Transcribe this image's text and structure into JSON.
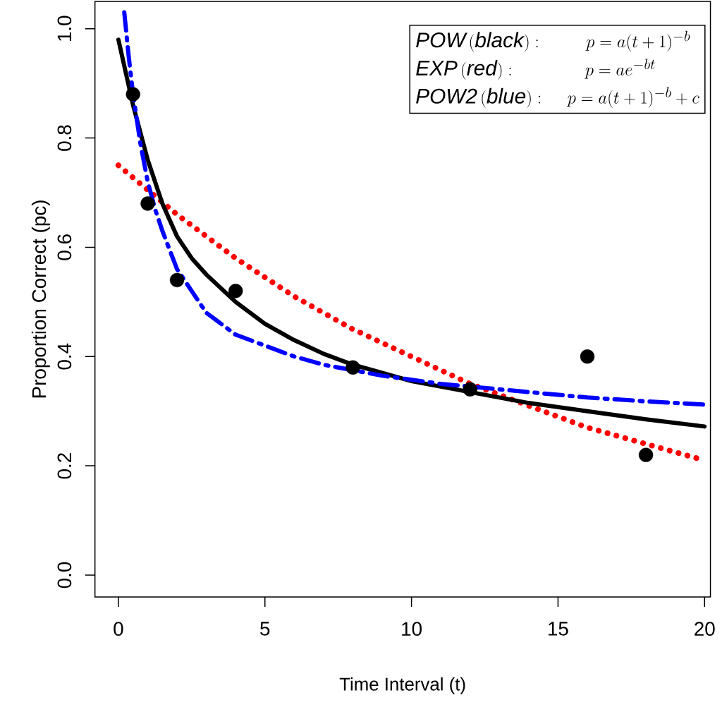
{
  "chart_data": {
    "type": "line",
    "xlabel": "Time Interval (t)",
    "ylabel": "Proportion Correct (pc)",
    "annotations": [
      "\\mathit{POW}\\,(\\mathit{black}):\\qquad p=a(t+1)^{-b}",
      "\\mathit{EXP}\\,(\\mathit{red}):\\qquad\\quad\\; p=ae^{-bt}",
      "\\mathit{POW2}\\,(\\mathit{blue}):\\quad p=a(t+1)^{-b}+c"
    ],
    "xlim": [
      -0.8,
      20.2
    ],
    "ylim": [
      -0.04,
      1.05
    ],
    "xticks": [
      0,
      5,
      10,
      15,
      20
    ],
    "yticks": [
      {
        "value": 0,
        "label": "0.0"
      },
      {
        "value": 0.2,
        "label": "0.2"
      },
      {
        "value": 0.4,
        "label": "0.4"
      },
      {
        "value": 0.6,
        "label": "0.6"
      },
      {
        "value": 0.8,
        "label": "0.8"
      },
      {
        "value": 1.0,
        "label": "1.0"
      }
    ],
    "series": [
      {
        "color": "#ff0000",
        "line_style": "dotted",
        "x": [
          0,
          2,
          4,
          6,
          8,
          10,
          12,
          14,
          16,
          18,
          20
        ],
        "values": [
          0.75,
          0.66,
          0.58,
          0.51,
          0.45,
          0.4,
          0.35,
          0.31,
          0.27,
          0.24,
          0.21
        ]
      },
      {
        "color": "#000000",
        "line_style": "solid",
        "x": [
          0,
          0.25,
          0.5,
          1,
          1.5,
          2,
          2.5,
          3,
          4,
          5,
          6,
          7,
          8,
          9,
          10,
          12,
          14,
          16,
          18,
          20
        ],
        "values": [
          0.98,
          0.92,
          0.86,
          0.76,
          0.68,
          0.62,
          0.58,
          0.55,
          0.5,
          0.46,
          0.43,
          0.405,
          0.385,
          0.37,
          0.355,
          0.335,
          0.315,
          0.3,
          0.285,
          0.272
        ]
      },
      {
        "color": "#0000ff",
        "line_style": "dashed",
        "x": [
          0.2,
          0.35,
          0.5,
          0.75,
          1,
          1.25,
          1.5,
          2,
          2.5,
          3,
          4,
          5,
          6,
          7,
          9,
          11,
          13,
          14,
          16,
          18,
          20
        ],
        "values": [
          1.03,
          0.95,
          0.88,
          0.79,
          0.72,
          0.67,
          0.63,
          0.56,
          0.52,
          0.48,
          0.44,
          0.42,
          0.4,
          0.385,
          0.365,
          0.35,
          0.34,
          0.335,
          0.325,
          0.318,
          0.312
        ]
      },
      {
        "type": "scatter",
        "color": "#000000",
        "marker": "circle",
        "x": [
          0.5,
          1,
          2,
          4,
          8,
          12,
          16,
          18
        ],
        "values": [
          0.88,
          0.68,
          0.54,
          0.52,
          0.38,
          0.34,
          0.4,
          0.22
        ]
      }
    ]
  }
}
